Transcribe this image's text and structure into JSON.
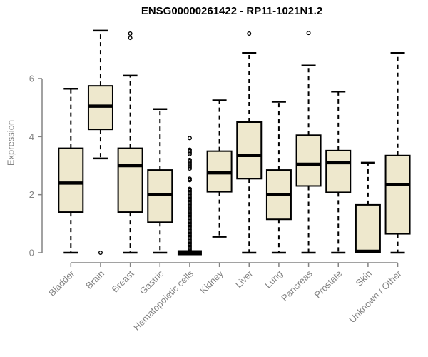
{
  "title": "ENSG00000261422 - RP11-1021N1.2",
  "y_axis": {
    "label": "Expression",
    "tick_labels": [
      "0",
      "2",
      "4",
      "6"
    ]
  },
  "colors": {
    "box_fill": "#EEE8CD",
    "box_stroke": "#000000",
    "median": "#000000",
    "whisker": "#000000",
    "outlier": "#000000",
    "axis": "#838383",
    "tick_text": "#838383",
    "title_text": "#000000",
    "background": "#ffffff"
  },
  "chart_data": {
    "type": "boxplot",
    "title": "ENSG00000261422 - RP11-1021N1.2",
    "xlabel": "",
    "ylabel": "Expression",
    "ylim": [
      -0.2,
      7.9
    ],
    "yticks": [
      0,
      2,
      4,
      6
    ],
    "grid": false,
    "legend": false,
    "categories": [
      "Bladder",
      "Brain",
      "Breast",
      "Gastric",
      "Hematopoietic cells",
      "Kidney",
      "Liver",
      "Lung",
      "Pancreas",
      "Prostate",
      "Skin",
      "Unknown / Other"
    ],
    "boxes": [
      {
        "name": "Bladder",
        "whisker_low": 0,
        "q1": 1.4,
        "median": 2.4,
        "q3": 3.6,
        "whisker_high": 5.65,
        "outliers": []
      },
      {
        "name": "Brain",
        "whisker_low": 3.25,
        "q1": 4.25,
        "median": 5.05,
        "q3": 5.75,
        "whisker_high": 7.65,
        "outliers": [
          0
        ]
      },
      {
        "name": "Breast",
        "whisker_low": 0,
        "q1": 1.4,
        "median": 3.0,
        "q3": 3.6,
        "whisker_high": 6.1,
        "outliers": [
          7.4,
          7.55
        ]
      },
      {
        "name": "Gastric",
        "whisker_low": 0,
        "q1": 1.05,
        "median": 2.0,
        "q3": 2.85,
        "whisker_high": 4.95,
        "outliers": []
      },
      {
        "name": "Hematopoietic cells",
        "whisker_low": 0,
        "q1": 0,
        "median": 0,
        "q3": 0,
        "whisker_high": 0,
        "outliers": [
          3.95,
          3.55,
          3.5,
          3.45,
          3.4,
          3.2,
          3.15,
          3.1,
          3.05,
          3.0,
          2.95,
          2.9,
          2.55,
          2.5,
          2.2,
          2.15,
          2.1,
          2.05,
          2.0,
          1.95,
          1.9,
          1.85,
          1.8,
          1.75,
          1.7,
          1.65,
          1.6,
          1.55,
          1.5,
          1.45,
          1.4,
          1.35,
          1.3,
          1.25,
          1.2,
          1.15,
          1.1,
          1.05,
          1.0,
          0.95,
          0.9,
          0.85,
          0.8,
          0.75,
          0.7,
          0.65,
          0.6,
          0.55,
          0.5,
          0.45,
          0.4,
          0.35,
          0.3,
          0.25,
          0.2,
          0.15,
          0.1,
          0.05
        ]
      },
      {
        "name": "Kidney",
        "whisker_low": 0.55,
        "q1": 2.1,
        "median": 2.75,
        "q3": 3.5,
        "whisker_high": 5.25,
        "outliers": []
      },
      {
        "name": "Liver",
        "whisker_low": 0,
        "q1": 2.55,
        "median": 3.35,
        "q3": 4.5,
        "whisker_high": 6.88,
        "outliers": [
          7.55
        ]
      },
      {
        "name": "Lung",
        "whisker_low": 0,
        "q1": 1.15,
        "median": 2.0,
        "q3": 2.85,
        "whisker_high": 5.2,
        "outliers": []
      },
      {
        "name": "Pancreas",
        "whisker_low": 0,
        "q1": 2.3,
        "median": 3.05,
        "q3": 4.05,
        "whisker_high": 6.45,
        "outliers": [
          7.57
        ]
      },
      {
        "name": "Prostate",
        "whisker_low": 0,
        "q1": 2.08,
        "median": 3.1,
        "q3": 3.52,
        "whisker_high": 5.55,
        "outliers": []
      },
      {
        "name": "Skin",
        "whisker_low": 0,
        "q1": 0,
        "median": 0.05,
        "q3": 1.65,
        "whisker_high": 3.1,
        "outliers": []
      },
      {
        "name": "Unknown / Other",
        "whisker_low": 0,
        "q1": 0.65,
        "median": 2.35,
        "q3": 3.35,
        "whisker_high": 6.88,
        "outliers": []
      }
    ]
  }
}
